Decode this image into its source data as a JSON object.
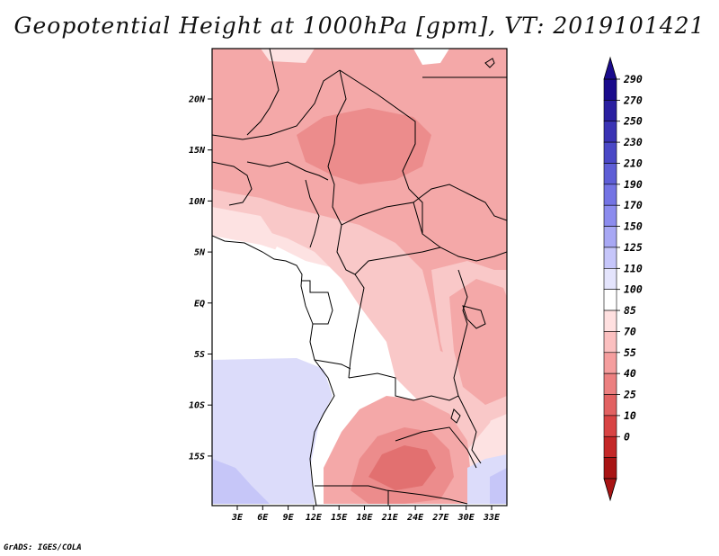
{
  "title": "Geopotential Height at 1000hPa [gpm], VT: 2019101421",
  "footer": "GrADS: IGES/COLA",
  "axes": {
    "lat_labels": [
      "20N",
      "15N",
      "10N",
      "5N",
      "EQ",
      "5S",
      "10S",
      "15S"
    ],
    "lon_labels": [
      "3E",
      "6E",
      "9E",
      "12E",
      "15E",
      "18E",
      "21E",
      "24E",
      "27E",
      "30E",
      "33E"
    ]
  },
  "colorbar": {
    "labels": [
      "290",
      "270",
      "250",
      "230",
      "210",
      "190",
      "170",
      "150",
      "125",
      "110",
      "100",
      "85",
      "70",
      "55",
      "40",
      "25",
      "10",
      "0"
    ],
    "colors": [
      "#1a0b8c",
      "#2a1fa0",
      "#3a33b4",
      "#4a48c6",
      "#5e5ed6",
      "#7474e4",
      "#8c8cee",
      "#a8a8f4",
      "#c6c6fa",
      "#e4e4fc",
      "#ffffff",
      "#ffe0e0",
      "#fbc0c0",
      "#f59e9e",
      "#ec8080",
      "#e26262",
      "#d84444",
      "#c42828",
      "#a81414"
    ]
  },
  "map_colors": {
    "white": "#ffffff",
    "pale_blue": "#dcdcfa",
    "blue": "#c6c6f8",
    "pink1": "#fde2e2",
    "pink2": "#f9c8c8",
    "pink3": "#f4a8a8",
    "pink4": "#ec8c8c",
    "pink5": "#e27070"
  }
}
